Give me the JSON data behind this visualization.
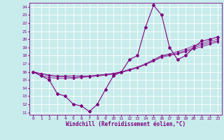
{
  "xlabel": "Windchill (Refroidissement éolien,°C)",
  "bg_color": "#c8ecec",
  "line_color": "#800080",
  "marker_color": "#800080",
  "xlim": [
    -0.5,
    23.5
  ],
  "ylim": [
    10.7,
    24.5
  ],
  "yticks": [
    11,
    12,
    13,
    14,
    15,
    16,
    17,
    18,
    19,
    20,
    21,
    22,
    23,
    24
  ],
  "xticks": [
    0,
    1,
    2,
    3,
    4,
    5,
    6,
    7,
    8,
    9,
    10,
    11,
    12,
    13,
    14,
    15,
    16,
    17,
    18,
    19,
    20,
    21,
    22,
    23
  ],
  "series": [
    {
      "x": [
        0,
        1,
        2,
        3,
        4,
        5,
        6,
        7,
        8,
        9,
        10,
        11,
        12,
        13,
        14,
        15,
        16,
        17,
        18,
        19,
        20,
        21,
        22,
        23
      ],
      "y": [
        16.0,
        15.5,
        15.0,
        13.3,
        13.0,
        12.0,
        11.8,
        11.1,
        12.0,
        13.8,
        15.5,
        16.0,
        17.5,
        18.0,
        21.5,
        24.2,
        23.0,
        19.0,
        17.5,
        18.0,
        19.0,
        19.8,
        20.0,
        20.3
      ]
    },
    {
      "x": [
        0,
        1,
        2,
        3,
        4,
        5,
        6,
        7,
        8,
        9,
        10,
        11,
        12,
        13,
        14,
        15,
        16,
        17,
        18,
        19,
        20,
        21,
        22,
        23
      ],
      "y": [
        16.0,
        15.5,
        15.3,
        15.2,
        15.2,
        15.2,
        15.3,
        15.4,
        15.5,
        15.6,
        15.8,
        16.0,
        16.3,
        16.6,
        17.0,
        17.5,
        18.0,
        18.2,
        18.5,
        18.8,
        19.2,
        19.5,
        19.8,
        20.0
      ]
    },
    {
      "x": [
        0,
        1,
        2,
        3,
        4,
        5,
        6,
        7,
        8,
        9,
        10,
        11,
        12,
        13,
        14,
        15,
        16,
        17,
        18,
        19,
        20,
        21,
        22,
        23
      ],
      "y": [
        16.0,
        15.7,
        15.5,
        15.4,
        15.4,
        15.3,
        15.4,
        15.4,
        15.5,
        15.6,
        15.7,
        15.9,
        16.2,
        16.5,
        16.9,
        17.4,
        17.9,
        18.1,
        18.3,
        18.6,
        19.0,
        19.3,
        19.6,
        19.8
      ]
    },
    {
      "x": [
        0,
        1,
        2,
        3,
        4,
        5,
        6,
        7,
        8,
        9,
        10,
        11,
        12,
        13,
        14,
        15,
        16,
        17,
        18,
        19,
        20,
        21,
        22,
        23
      ],
      "y": [
        16.0,
        15.8,
        15.6,
        15.5,
        15.5,
        15.5,
        15.5,
        15.5,
        15.6,
        15.7,
        15.8,
        16.0,
        16.2,
        16.5,
        16.9,
        17.3,
        17.8,
        18.0,
        18.2,
        18.5,
        18.8,
        19.1,
        19.4,
        19.7
      ]
    }
  ],
  "grid_color": "#ffffff",
  "tick_fontsize": 4.5,
  "xlabel_fontsize": 5.5
}
